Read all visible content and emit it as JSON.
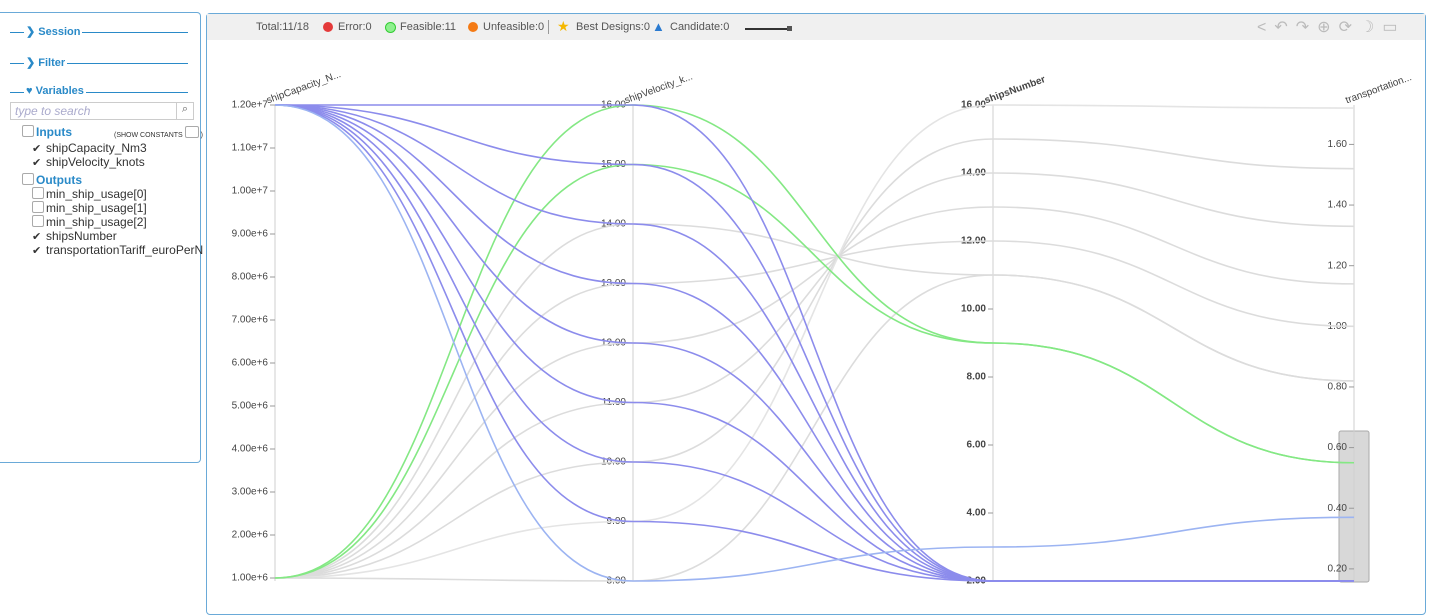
{
  "sidebar": {
    "sections": [
      "Session",
      "Filter",
      "Variables"
    ],
    "search_placeholder": "type to search",
    "inputs_label": "Inputs",
    "show_constants_open": "(SHOW CONSTANTS",
    "show_constants_close": ")",
    "inputs": [
      {
        "name": "shipCapacity_Nm3",
        "checked": true
      },
      {
        "name": "shipVelocity_knots",
        "checked": true
      }
    ],
    "outputs_label": "Outputs",
    "outputs": [
      {
        "name": "min_ship_usage[0]",
        "checked": false
      },
      {
        "name": "min_ship_usage[1]",
        "checked": false
      },
      {
        "name": "min_ship_usage[2]",
        "checked": false
      },
      {
        "name": "shipsNumber",
        "checked": true
      },
      {
        "name": "transportationTariff_euroPerN",
        "checked": true
      }
    ]
  },
  "toolbar": {
    "total": "Total:11/18",
    "error": "Error:0",
    "feasible": "Feasible:11",
    "unfeasible": "Unfeasible:0",
    "best_designs": "Best Designs:0",
    "candidate": "Candidate:0"
  },
  "plot": {
    "axes": [
      {
        "label": "shipCapacity_N...",
        "bold": false,
        "ylim": [
          930000,
          12000000
        ],
        "ticks": [
          {
            "value": 1000000,
            "label": "1.00e+6"
          },
          {
            "value": 2000000,
            "label": "2.00e+6"
          },
          {
            "value": 3000000,
            "label": "3.00e+6"
          },
          {
            "value": 4000000,
            "label": "4.00e+6"
          },
          {
            "value": 5000000,
            "label": "5.00e+6"
          },
          {
            "value": 6000000,
            "label": "6.00e+6"
          },
          {
            "value": 7000000,
            "label": "7.00e+6"
          },
          {
            "value": 8000000,
            "label": "8.00e+6"
          },
          {
            "value": 9000000,
            "label": "9.00e+6"
          },
          {
            "value": 10000000,
            "label": "1.00e+7"
          },
          {
            "value": 11000000,
            "label": "1.10e+7"
          },
          {
            "value": 12000000,
            "label": "1.20e+7"
          }
        ]
      },
      {
        "label": "shipVelocity_k...",
        "bold": false,
        "ylim": [
          8,
          16
        ],
        "ticks": [
          {
            "value": 8,
            "label": "8.00"
          },
          {
            "value": 9,
            "label": "9.00"
          },
          {
            "value": 10,
            "label": "10.00"
          },
          {
            "value": 11,
            "label": "11.00"
          },
          {
            "value": 12,
            "label": "12.00"
          },
          {
            "value": 13,
            "label": "13.00"
          },
          {
            "value": 14,
            "label": "14.00"
          },
          {
            "value": 15,
            "label": "15.00"
          },
          {
            "value": 16,
            "label": "16.00"
          }
        ]
      },
      {
        "label": "shipsNumber",
        "bold": true,
        "ylim": [
          2,
          16
        ],
        "ticks": [
          {
            "value": 2,
            "label": "2.00"
          },
          {
            "value": 4,
            "label": "4.00"
          },
          {
            "value": 6,
            "label": "6.00"
          },
          {
            "value": 8,
            "label": "8.00"
          },
          {
            "value": 10,
            "label": "10.00"
          },
          {
            "value": 12,
            "label": "12.00"
          },
          {
            "value": 14,
            "label": "14.00"
          },
          {
            "value": 16,
            "label": "16.00"
          }
        ]
      },
      {
        "label": "transportation...",
        "bold": false,
        "ylim": [
          0.16,
          1.73
        ],
        "ticks": [
          {
            "value": 0.2,
            "label": "0.20"
          },
          {
            "value": 0.4,
            "label": "0.40"
          },
          {
            "value": 0.6,
            "label": "0.60"
          },
          {
            "value": 0.8,
            "label": "0.80"
          },
          {
            "value": 1.0,
            "label": "1.00"
          },
          {
            "value": 1.2,
            "label": "1.20"
          },
          {
            "value": 1.4,
            "label": "1.40"
          },
          {
            "value": 1.6,
            "label": "1.60"
          }
        ]
      }
    ],
    "lines": [
      {
        "color": "#dcdcdc",
        "values": [
          1000000,
          14,
          11,
          0.82
        ]
      },
      {
        "color": "#dcdcdc",
        "values": [
          1000000,
          13,
          12,
          1.0
        ]
      },
      {
        "color": "#dcdcdc",
        "values": [
          1000000,
          12,
          13,
          1.14
        ]
      },
      {
        "color": "#dcdcdc",
        "values": [
          1000000,
          11,
          14,
          1.33
        ]
      },
      {
        "color": "#dcdcdc",
        "values": [
          1000000,
          10,
          15,
          1.52
        ]
      },
      {
        "color": "#e4e4e4",
        "values": [
          1000000,
          9,
          16,
          1.72
        ]
      },
      {
        "color": "#dcdcdc",
        "values": [
          1000000,
          8,
          11,
          0.82
        ]
      },
      {
        "color": "#84e884",
        "values": [
          1000000,
          16,
          9,
          0.55
        ]
      },
      {
        "color": "#84e884",
        "values": [
          1000000,
          15,
          9,
          0.55
        ]
      },
      {
        "color": "#8c8cec",
        "values": [
          12000000,
          16,
          2,
          0.16
        ]
      },
      {
        "color": "#8c8cec",
        "values": [
          12000000,
          15,
          2,
          0.16
        ]
      },
      {
        "color": "#8c8cec",
        "values": [
          12000000,
          14,
          2,
          0.16
        ]
      },
      {
        "color": "#8c8cec",
        "values": [
          12000000,
          13,
          2,
          0.16
        ]
      },
      {
        "color": "#8c8cec",
        "values": [
          12000000,
          12,
          2,
          0.16
        ]
      },
      {
        "color": "#8c8cec",
        "values": [
          12000000,
          11,
          2,
          0.16
        ]
      },
      {
        "color": "#8c8cec",
        "values": [
          12000000,
          10,
          2,
          0.16
        ]
      },
      {
        "color": "#8c8cec",
        "values": [
          12000000,
          9,
          2,
          0.16
        ]
      },
      {
        "color": "#9cb4f2",
        "values": [
          12000000,
          8,
          3,
          0.37
        ]
      }
    ]
  }
}
